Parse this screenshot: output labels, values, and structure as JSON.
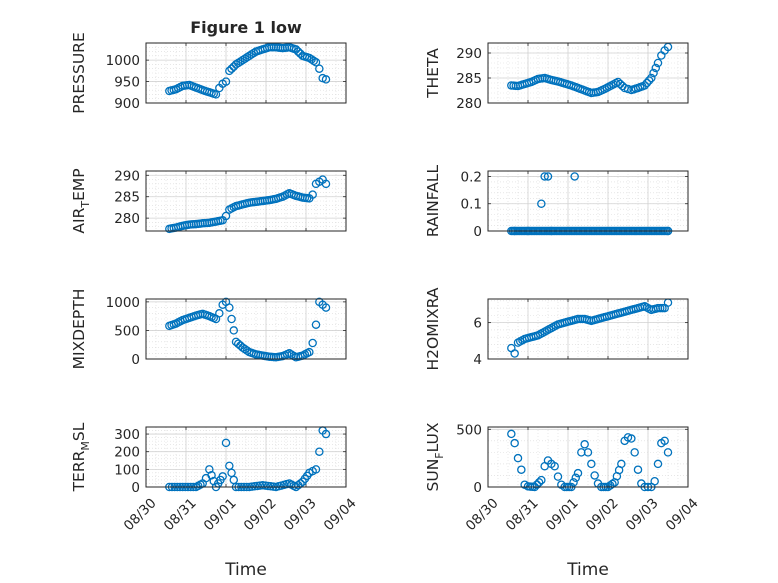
{
  "figure": {
    "title": "Figure 1 low"
  },
  "chart_data": [
    {
      "type": "scatter",
      "title": "Figure 1 low",
      "ylabel": "PRESSURE",
      "xlabel": "",
      "x_date_range": [
        "08/30",
        "09/04"
      ],
      "ylim": [
        900,
        1040
      ],
      "yticks": [
        900,
        950,
        1000
      ],
      "yticklabels": [
        "900",
        "950",
        "1000"
      ],
      "xticklabels": [],
      "grid": true,
      "marker": "circle-open",
      "color": "#0072BD",
      "x": [
        "08/30 14:00",
        "08/30 18:00",
        "08/30 22:00",
        "08/31 02:00",
        "08/31 06:00",
        "08/31 10:00",
        "08/31 14:00",
        "08/31 18:00",
        "08/31 20:00",
        "08/31 22:00",
        "09/01 00:00",
        "09/01 02:00",
        "09/01 06:00",
        "09/01 10:00",
        "09/01 14:00",
        "09/01 18:00",
        "09/01 22:00",
        "09/02 02:00",
        "09/02 06:00",
        "09/02 10:00",
        "09/02 14:00",
        "09/02 18:00",
        "09/02 22:00",
        "09/03 02:00",
        "09/03 06:00",
        "09/03 08:00",
        "09/03 10:00",
        "09/03 12:00"
      ],
      "y": [
        928,
        932,
        940,
        942,
        936,
        930,
        925,
        920,
        935,
        945,
        950,
        975,
        990,
        1000,
        1010,
        1020,
        1025,
        1030,
        1030,
        1028,
        1030,
        1025,
        1010,
        1005,
        995,
        980,
        958,
        955
      ]
    },
    {
      "type": "scatter",
      "title": "",
      "ylabel": "THETA",
      "xlabel": "",
      "x_date_range": [
        "08/30",
        "09/04"
      ],
      "ylim": [
        280,
        292
      ],
      "yticks": [
        280,
        285,
        290
      ],
      "yticklabels": [
        "280",
        "285",
        "290"
      ],
      "xticklabels": [],
      "grid": true,
      "marker": "circle-open",
      "color": "#0072BD",
      "x": [
        "08/30 14:00",
        "08/30 18:00",
        "08/30 22:00",
        "08/31 02:00",
        "08/31 06:00",
        "08/31 10:00",
        "08/31 14:00",
        "08/31 18:00",
        "08/31 22:00",
        "09/01 02:00",
        "09/01 06:00",
        "09/01 10:00",
        "09/01 14:00",
        "09/01 18:00",
        "09/01 22:00",
        "09/02 02:00",
        "09/02 06:00",
        "09/02 10:00",
        "09/02 12:00",
        "09/02 14:00",
        "09/02 18:00",
        "09/02 22:00",
        "09/03 02:00",
        "09/03 06:00",
        "09/03 08:00",
        "09/03 10:00",
        "09/03 12:00"
      ],
      "y": [
        283.5,
        283.4,
        283.8,
        284.2,
        284.8,
        285.0,
        284.6,
        284.3,
        283.9,
        283.5,
        283.0,
        282.5,
        282.0,
        282.2,
        282.8,
        283.5,
        284.2,
        283.0,
        282.8,
        282.6,
        283.0,
        283.5,
        285.0,
        288.0,
        289.5,
        290.5,
        291.2
      ]
    },
    {
      "type": "scatter",
      "title": "",
      "ylabel": "AIR_TEMP",
      "ylabel_main": "AIR",
      "ylabel_sub": "T",
      "ylabel_rest": "EMP",
      "xlabel": "",
      "x_date_range": [
        "08/30",
        "09/04"
      ],
      "ylim": [
        277,
        291
      ],
      "yticks": [
        280,
        285,
        290
      ],
      "yticklabels": [
        "280",
        "285",
        "290"
      ],
      "xticklabels": [],
      "grid": true,
      "marker": "circle-open",
      "color": "#0072BD",
      "x": [
        "08/30 14:00",
        "08/30 18:00",
        "08/30 22:00",
        "08/31 02:00",
        "08/31 06:00",
        "08/31 10:00",
        "08/31 14:00",
        "08/31 18:00",
        "08/31 22:00",
        "09/01 00:00",
        "09/01 02:00",
        "09/01 06:00",
        "09/01 10:00",
        "09/01 14:00",
        "09/01 18:00",
        "09/01 22:00",
        "09/02 02:00",
        "09/02 06:00",
        "09/02 10:00",
        "09/02 14:00",
        "09/02 18:00",
        "09/02 22:00",
        "09/03 02:00",
        "09/03 04:00",
        "09/03 06:00",
        "09/03 08:00",
        "09/03 10:00",
        "09/03 12:00"
      ],
      "y": [
        277.5,
        277.8,
        278.2,
        278.5,
        278.6,
        278.8,
        278.9,
        279.2,
        279.5,
        280.5,
        282.0,
        282.8,
        283.2,
        283.6,
        283.8,
        284.0,
        284.2,
        284.5,
        285.0,
        285.8,
        285.2,
        284.8,
        284.6,
        285.5,
        288.0,
        288.5,
        289.0,
        288.0
      ]
    },
    {
      "type": "scatter",
      "title": "",
      "ylabel": "RAINFALL",
      "xlabel": "",
      "x_date_range": [
        "08/30",
        "09/04"
      ],
      "ylim": [
        0,
        0.22
      ],
      "yticks": [
        0,
        0.1,
        0.2
      ],
      "yticklabels": [
        "0",
        "0.1",
        "0.2"
      ],
      "xticklabels": [],
      "grid": true,
      "marker": "circle-open",
      "color": "#0072BD",
      "x": [
        "08/30 16:00",
        "08/31 08:00",
        "08/31 10:00",
        "08/31 12:00",
        "08/31 14:00",
        "09/01 04:00",
        "08/31 00:00",
        "09/03 12:00"
      ],
      "y": [
        0,
        0.1,
        0.2,
        0.2,
        0,
        0.2,
        0,
        0
      ],
      "baseline_zero_range": [
        "08/30 14:00",
        "09/03 12:00"
      ]
    },
    {
      "type": "scatter",
      "title": "",
      "ylabel": "MIXDEPTH",
      "xlabel": "",
      "x_date_range": [
        "08/30",
        "09/04"
      ],
      "ylim": [
        0,
        1050
      ],
      "yticks": [
        0,
        500,
        1000
      ],
      "yticklabels": [
        "0",
        "500",
        "1000"
      ],
      "xticklabels": [],
      "grid": true,
      "marker": "circle-open",
      "color": "#0072BD",
      "x": [
        "08/30 14:00",
        "08/30 18:00",
        "08/30 22:00",
        "08/31 02:00",
        "08/31 06:00",
        "08/31 10:00",
        "08/31 14:00",
        "08/31 18:00",
        "08/31 20:00",
        "08/31 22:00",
        "09/01 00:00",
        "09/01 02:00",
        "09/01 06:00",
        "09/01 10:00",
        "09/01 14:00",
        "09/01 18:00",
        "09/01 22:00",
        "09/02 02:00",
        "09/02 06:00",
        "09/02 10:00",
        "09/02 14:00",
        "09/02 18:00",
        "09/02 22:00",
        "09/03 02:00",
        "09/03 04:00",
        "09/03 06:00",
        "09/03 08:00",
        "09/03 10:00",
        "09/03 12:00"
      ],
      "y": [
        580,
        620,
        680,
        720,
        760,
        790,
        750,
        700,
        800,
        950,
        1000,
        900,
        300,
        200,
        120,
        80,
        60,
        40,
        30,
        50,
        100,
        30,
        60,
        120,
        280,
        600,
        1000,
        950,
        900
      ]
    },
    {
      "type": "scatter",
      "title": "",
      "ylabel": "H2OMIXRA",
      "xlabel": "",
      "x_date_range": [
        "08/30",
        "09/04"
      ],
      "ylim": [
        4,
        7.3
      ],
      "yticks": [
        4,
        6
      ],
      "yticklabels": [
        "4",
        "6"
      ],
      "xticklabels": [],
      "grid": true,
      "marker": "circle-open",
      "color": "#0072BD",
      "x": [
        "08/30 14:00",
        "08/30 16:00",
        "08/30 18:00",
        "08/30 22:00",
        "08/31 02:00",
        "08/31 06:00",
        "08/31 10:00",
        "08/31 14:00",
        "08/31 18:00",
        "08/31 22:00",
        "09/01 02:00",
        "09/01 06:00",
        "09/01 10:00",
        "09/01 14:00",
        "09/01 18:00",
        "09/01 22:00",
        "09/02 02:00",
        "09/02 06:00",
        "09/02 10:00",
        "09/02 14:00",
        "09/02 18:00",
        "09/02 22:00",
        "09/03 02:00",
        "09/03 06:00",
        "09/03 10:00",
        "09/03 12:00"
      ],
      "y": [
        4.6,
        4.3,
        4.9,
        5.1,
        5.2,
        5.3,
        5.5,
        5.7,
        5.9,
        6.0,
        6.1,
        6.2,
        6.2,
        6.1,
        6.2,
        6.3,
        6.4,
        6.5,
        6.6,
        6.7,
        6.8,
        6.9,
        6.7,
        6.8,
        6.8,
        7.1
      ]
    },
    {
      "type": "scatter",
      "title": "",
      "ylabel": "TERR_MSL",
      "ylabel_main": "TERR",
      "ylabel_sub": "M",
      "ylabel_rest": "SL",
      "xlabel": "Time",
      "x_date_range": [
        "08/30",
        "09/04"
      ],
      "ylim": [
        0,
        340
      ],
      "yticks": [
        0,
        100,
        200,
        300
      ],
      "yticklabels": [
        "0",
        "100",
        "200",
        "300"
      ],
      "xticks": [
        "08/30",
        "08/31",
        "09/01",
        "09/02",
        "09/03",
        "09/04"
      ],
      "xticklabels": [
        "08/30",
        "08/31",
        "09/01",
        "09/02",
        "09/03",
        "09/04"
      ],
      "grid": true,
      "marker": "circle-open",
      "color": "#0072BD",
      "x": [
        "08/30 14:00",
        "08/30 22:00",
        "08/31 06:00",
        "08/31 10:00",
        "08/31 12:00",
        "08/31 14:00",
        "08/31 18:00",
        "08/31 22:00",
        "09/01 00:00",
        "09/01 02:00",
        "09/01 06:00",
        "09/01 14:00",
        "09/01 22:00",
        "09/02 06:00",
        "09/02 14:00",
        "09/02 18:00",
        "09/02 22:00",
        "09/03 02:00",
        "09/03 04:00",
        "09/03 06:00",
        "09/03 08:00",
        "09/03 10:00",
        "09/03 12:00"
      ],
      "y": [
        0,
        0,
        0,
        20,
        50,
        100,
        0,
        60,
        250,
        120,
        0,
        0,
        10,
        0,
        20,
        0,
        30,
        80,
        90,
        100,
        200,
        320,
        300
      ]
    },
    {
      "type": "scatter",
      "title": "",
      "ylabel": "SUN_FLUX",
      "ylabel_main": "SUN",
      "ylabel_sub": "F",
      "ylabel_rest": "LUX",
      "xlabel": "Time",
      "x_date_range": [
        "08/30",
        "09/04"
      ],
      "ylim": [
        0,
        520
      ],
      "yticks": [
        0,
        500
      ],
      "yticklabels": [
        "0",
        "500"
      ],
      "xticks": [
        "08/30",
        "08/31",
        "09/01",
        "09/02",
        "09/03",
        "09/04"
      ],
      "xticklabels": [
        "08/30",
        "08/31",
        "09/01",
        "09/02",
        "09/03",
        "09/04"
      ],
      "grid": true,
      "marker": "circle-open",
      "color": "#0072BD",
      "x": [
        "08/30 14:00",
        "08/30 16:00",
        "08/30 18:00",
        "08/30 20:00",
        "08/30 22:00",
        "08/31 00:00",
        "08/31 04:00",
        "08/31 08:00",
        "08/31 10:00",
        "08/31 12:00",
        "08/31 14:00",
        "08/31 16:00",
        "08/31 18:00",
        "08/31 20:00",
        "08/31 22:00",
        "09/01 02:00",
        "09/01 06:00",
        "09/01 08:00",
        "09/01 10:00",
        "09/01 12:00",
        "09/01 14:00",
        "09/01 16:00",
        "09/01 18:00",
        "09/01 20:00",
        "09/02 00:00",
        "09/02 04:00",
        "09/02 08:00",
        "09/02 10:00",
        "09/02 12:00",
        "09/02 14:00",
        "09/02 16:00",
        "09/02 18:00",
        "09/02 20:00",
        "09/02 22:00",
        "09/03 00:00",
        "09/03 02:00",
        "09/03 04:00",
        "09/03 06:00",
        "09/03 08:00",
        "09/03 10:00",
        "09/03 12:00"
      ],
      "y": [
        460,
        380,
        250,
        150,
        20,
        5,
        0,
        60,
        180,
        230,
        200,
        180,
        90,
        20,
        0,
        0,
        120,
        300,
        370,
        300,
        200,
        100,
        30,
        0,
        0,
        40,
        200,
        400,
        430,
        420,
        300,
        150,
        30,
        0,
        0,
        0,
        50,
        200,
        380,
        400,
        300
      ]
    }
  ]
}
